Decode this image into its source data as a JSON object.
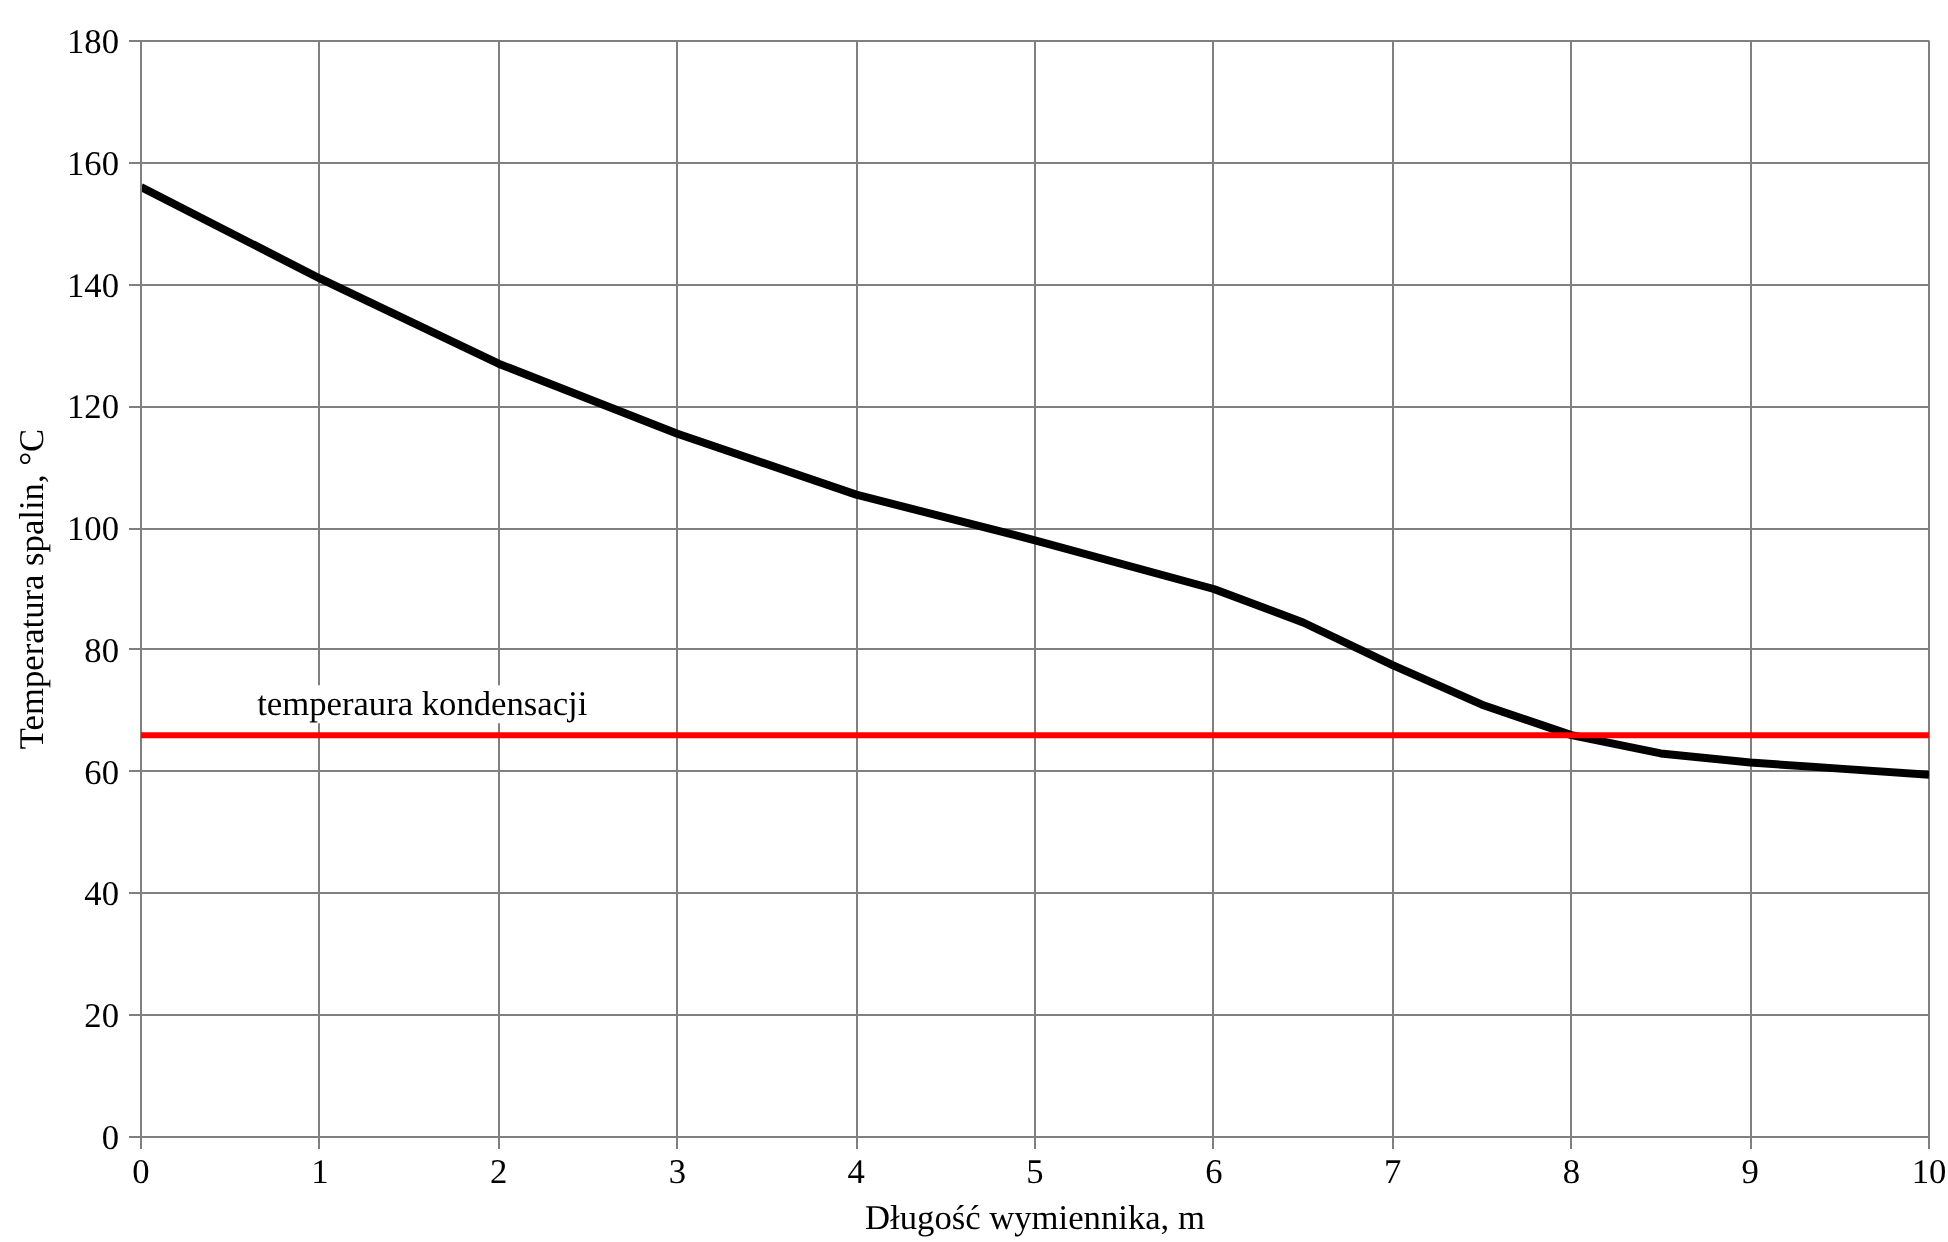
{
  "chart_data": {
    "type": "line",
    "xlabel": "Długość wymiennika, m",
    "ylabel": "Temperatura spalin, °C",
    "x": [
      0,
      1,
      2,
      3,
      4,
      5,
      6,
      6.5,
      7,
      7.5,
      8,
      8.5,
      9,
      9.5,
      10
    ],
    "series": [
      {
        "color": "#000000",
        "values": [
          156,
          141,
          127,
          115.5,
          105.5,
          98,
          90,
          84.5,
          77.5,
          71,
          66,
          63,
          61.5,
          60.5,
          59.5
        ]
      }
    ],
    "xlim": [
      0,
      10
    ],
    "xticks": [
      0,
      1,
      2,
      3,
      4,
      5,
      6,
      7,
      8,
      9,
      10
    ],
    "ylim": [
      0,
      180
    ],
    "yticks": [
      0,
      20,
      40,
      60,
      80,
      100,
      120,
      140,
      160,
      180
    ],
    "ref_lines": [
      {
        "axis": "y",
        "value": 66,
        "label": "temperaura kondensacji",
        "color": "#ff0000"
      }
    ],
    "grid": true,
    "marker": "none",
    "line_style": "solid"
  }
}
